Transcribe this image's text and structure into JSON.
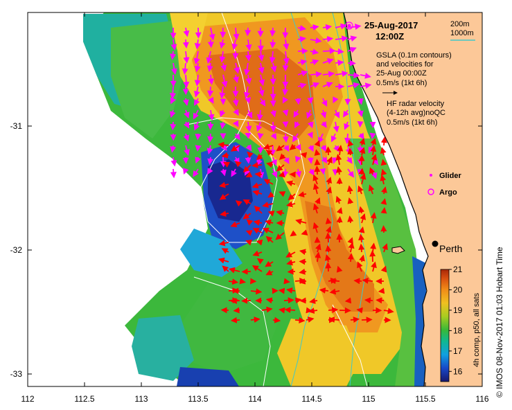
{
  "title": {
    "date": "25-Aug-2017",
    "time": "12:00Z"
  },
  "depth_legend": {
    "line1": "200m",
    "line2": "1000m",
    "line2_color": "#40c8c8"
  },
  "gsla_legend": {
    "line1": "GSLA (0.1m contours)",
    "line2": "and velocities for",
    "line3": "25-Aug 00:00Z",
    "line4": "0.5m/s (1kt 6h)"
  },
  "hf_legend": {
    "line1": "HF radar velocity",
    "line2": "(4-12h avg)noQC",
    "line3": "0.5m/s (1kt 6h)"
  },
  "markers": {
    "glider": "Glider",
    "argo": "Argo",
    "city": "Perth"
  },
  "colorbar": {
    "label": "4h comp, p50, all sats",
    "ticks": [
      "21",
      "20",
      "19",
      "18",
      "17",
      "16"
    ],
    "min": 15.5,
    "max": 21
  },
  "credit": "© IMOS 08-Nov-2017 01:03 Hobart Time",
  "axes": {
    "x_ticks": [
      "112",
      "112.5",
      "113",
      "113.5",
      "114",
      "114.5",
      "115",
      "115.5",
      "116"
    ],
    "y_ticks": [
      "-31",
      "-32",
      "-33"
    ]
  },
  "colors": {
    "land": "#fcc898",
    "gsla_arrow": "#ff00ff",
    "hf_arrow": "#ff0000",
    "depth_contour": "#40c8c8",
    "gsla_contour": "#ffffff"
  }
}
